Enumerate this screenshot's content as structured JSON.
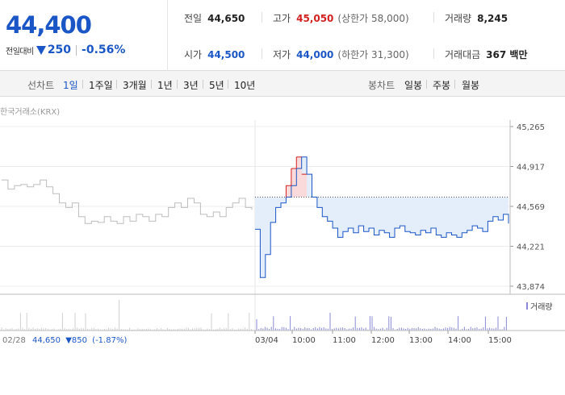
{
  "summary": {
    "price": "44,400",
    "change_label": "전일대비",
    "change_value": "250",
    "change_rate": "-0.56%"
  },
  "stats": {
    "prev": {
      "label": "전일",
      "value": "44,650"
    },
    "high": {
      "label": "고가",
      "value": "45,050",
      "sub": "(상한가 58,000)"
    },
    "volume": {
      "label": "거래량",
      "value": "8,245"
    },
    "open": {
      "label": "시가",
      "value": "44,500"
    },
    "low": {
      "label": "저가",
      "value": "44,000",
      "sub": "(하한가 31,300)"
    },
    "amount": {
      "label": "거래대금",
      "value": "367 백만"
    }
  },
  "toolbar": {
    "line_label": "선차트",
    "periods": [
      "1일",
      "1주일",
      "3개월",
      "1년",
      "3년",
      "5년",
      "10년"
    ],
    "active_period": "1일",
    "candle_label": "봉차트",
    "candles": [
      "일봉",
      "주봉",
      "월봉"
    ]
  },
  "source_label": "한국거래소(KRX)",
  "prev_info": {
    "date": "02/28",
    "price": "44,650",
    "change": "▼850",
    "rate": "(-1.87%)"
  },
  "colors": {
    "up": "#d21f1f",
    "down": "#1a56c6",
    "prev_line": "#bdbdbd",
    "fill": "#e4eefa",
    "volume": "#8a8ad6"
  },
  "chart_data": {
    "type": "line",
    "title": "",
    "ylim": [
      43874,
      45265
    ],
    "y_ticks": [
      "45,265",
      "44,917",
      "44,569",
      "44,221",
      "43,874"
    ],
    "x_labels": [
      "02/28",
      "03/04",
      "10:00",
      "11:00",
      "12:00",
      "13:00",
      "14:00",
      "15:00"
    ],
    "baseline": 44650,
    "legend": [
      "거래량"
    ],
    "series": [
      {
        "x_range": [
          "02/28 09:00",
          "02/28 15:30"
        ],
        "values": [
          44800,
          44720,
          44750,
          44760,
          44740,
          44760,
          44800,
          44740,
          44680,
          44600,
          44560,
          44600,
          44480,
          44420,
          44440,
          44430,
          44480,
          44440,
          44420,
          44480,
          44440,
          44500,
          44480,
          44440,
          44500,
          44480,
          44560,
          44600,
          44560,
          44640,
          44600,
          44500,
          44480,
          44520,
          44480,
          44560,
          44600,
          44640,
          44560,
          44540
        ]
      },
      {
        "x_range": [
          "03/04 09:00",
          "03/04 15:20"
        ],
        "values": [
          44370,
          43950,
          44150,
          44430,
          44560,
          44600,
          44650,
          44750,
          44900,
          45000,
          44850,
          44650,
          44560,
          44480,
          44440,
          44380,
          44300,
          44350,
          44380,
          44340,
          44400,
          44350,
          44380,
          44320,
          44360,
          44340,
          44300,
          44380,
          44400,
          44350,
          44340,
          44320,
          44360,
          44340,
          44380,
          44320,
          44300,
          44340,
          44320,
          44300,
          44340,
          44360,
          44400,
          44380,
          44350,
          44440,
          44480,
          44450,
          44500,
          44420
        ]
      }
    ]
  }
}
